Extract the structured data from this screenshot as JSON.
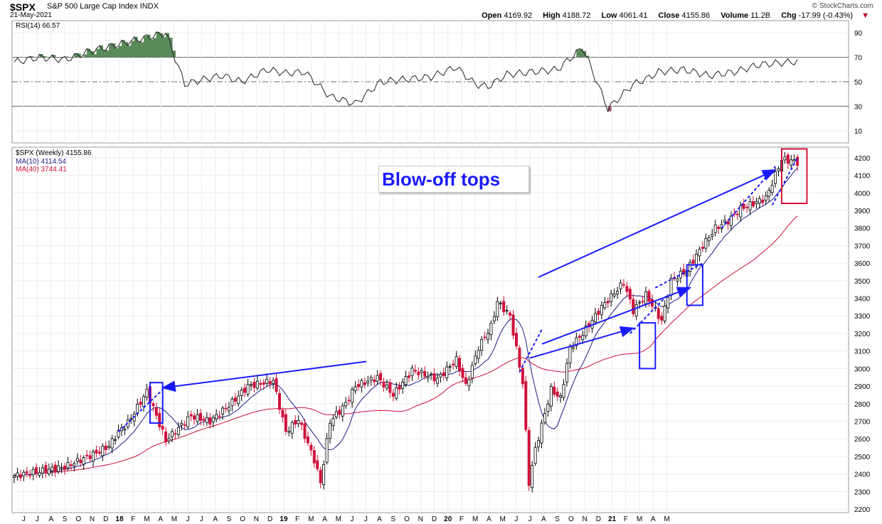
{
  "header": {
    "symbol": "$SPX",
    "name": "S&P 500 Large Cap Index  INDX",
    "date": "21-May-2021",
    "credit": "© StockCharts.com",
    "open_label": "Open",
    "open": "4169.92",
    "high_label": "High",
    "high": "4188.72",
    "low_label": "Low",
    "low": "4061.41",
    "close_label": "Close",
    "close": "4155.86",
    "volume_label": "Volume",
    "volume": "11.2B",
    "chg_label": "Chg",
    "chg": "-17.99 (-0.43%)"
  },
  "annotation": {
    "text": "Blow-off tops"
  },
  "colors": {
    "up": "#000000",
    "down": "#d0103a",
    "ma10": "#1c1c8a",
    "ma40": "#d0103a",
    "rsi_fill": "#5a8a5a",
    "arrow": "#1a1aff",
    "box_blue": "#1a1aff",
    "box_red": "#d0103a"
  },
  "chart_data": [
    {
      "type": "line",
      "title": "RSI(14) 66.57",
      "legend": [
        "RSI(14) 66.57"
      ],
      "ylim": [
        0,
        100
      ],
      "yticks": [
        10,
        30,
        50,
        70,
        90
      ],
      "x_index": [
        0,
        8,
        16,
        24,
        32,
        40,
        48,
        54,
        60,
        66,
        72,
        80,
        86,
        92,
        100,
        108,
        116,
        124,
        132,
        140,
        142,
        146,
        150,
        156,
        164,
        172,
        180,
        188,
        196,
        200,
        204,
        212,
        220,
        228,
        236,
        248
      ],
      "values": [
        66,
        70,
        68,
        75,
        80,
        85,
        90,
        48,
        52,
        55,
        50,
        60,
        57,
        58,
        38,
        32,
        50,
        52,
        54,
        62,
        57,
        48,
        46,
        56,
        58,
        60,
        78,
        28,
        48,
        52,
        58,
        60,
        55,
        58,
        64,
        66.57
      ]
    },
    {
      "type": "candlestick",
      "title": "$SPX (Weekly) 4155.86",
      "legend": [
        "$SPX (Weekly) 4155.86",
        "MA(10) 4114.54",
        "MA(40) 3744.41"
      ],
      "ylim": [
        2180,
        4260
      ],
      "yticks": [
        2200,
        2300,
        2400,
        2500,
        2600,
        2700,
        2800,
        2900,
        3000,
        3100,
        3200,
        3300,
        3400,
        3500,
        3600,
        3700,
        3800,
        3900,
        4000,
        4100,
        4200
      ],
      "x_tick_labels": [
        "J",
        "J",
        "A",
        "S",
        "O",
        "N",
        "D",
        "18",
        "F",
        "M",
        "A",
        "M",
        "J",
        "J",
        "A",
        "S",
        "O",
        "N",
        "D",
        "19",
        "F",
        "M",
        "A",
        "M",
        "J",
        "J",
        "A",
        "S",
        "O",
        "N",
        "D",
        "20",
        "F",
        "M",
        "A",
        "M",
        "J",
        "J",
        "A",
        "S",
        "O",
        "N",
        "D",
        "21",
        "F",
        "M",
        "A",
        "M"
      ],
      "close_anchors": {
        "week": [
          0,
          16,
          26,
          30,
          33,
          36,
          42,
          48,
          56,
          62,
          68,
          74,
          82,
          86,
          90,
          95,
          97,
          100,
          105,
          108,
          115,
          120,
          126,
          134,
          140,
          143,
          147,
          151,
          153,
          157,
          161,
          163,
          165,
          170,
          173,
          176,
          180,
          186,
          193,
          196,
          200,
          205,
          208,
          213,
          218,
          222,
          226,
          230,
          234,
          238,
          243,
          247,
          248
        ],
        "close": [
          2390,
          2440,
          2520,
          2560,
          2640,
          2690,
          2870,
          2590,
          2730,
          2700,
          2790,
          2900,
          2930,
          2640,
          2710,
          2480,
          2350,
          2700,
          2800,
          2900,
          2950,
          2850,
          2990,
          2940,
          3050,
          2900,
          3120,
          3240,
          3380,
          3300,
          2920,
          2350,
          2540,
          2880,
          2830,
          3120,
          3200,
          3350,
          3490,
          3330,
          3420,
          3270,
          3500,
          3560,
          3700,
          3800,
          3840,
          3910,
          3940,
          3970,
          4190,
          4180,
          4155.86
        ]
      },
      "ma10_last": 4114.54,
      "ma40_last": 3744.41
    }
  ]
}
